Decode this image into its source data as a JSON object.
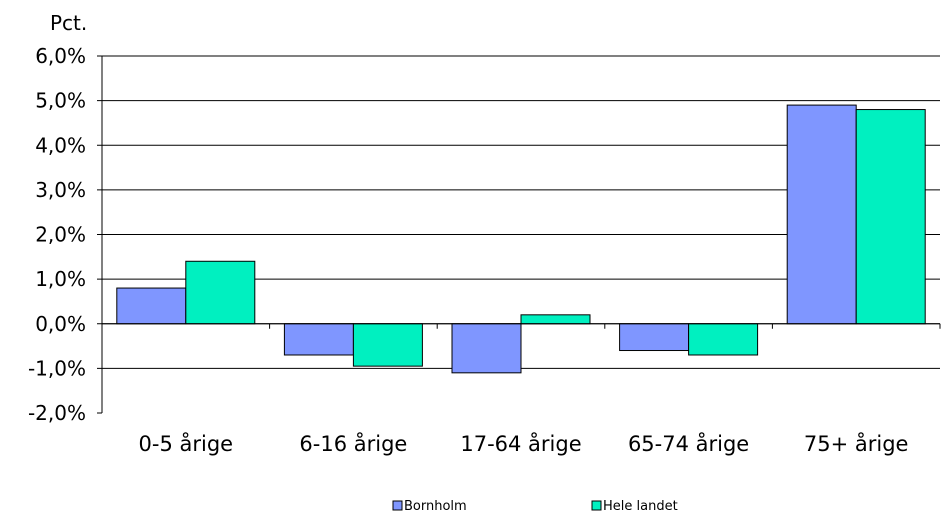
{
  "chart_data": {
    "type": "bar",
    "unit_label": "Pct.",
    "categories": [
      "0-5 årige",
      "6-16 årige",
      "17-64 årige",
      "65-74 årige",
      "75+ årige"
    ],
    "series": [
      {
        "name": "Bornholm",
        "color": "#7f96ff",
        "values": [
          0.8,
          -0.7,
          -1.1,
          -0.6,
          4.9
        ]
      },
      {
        "name": "Hele landet",
        "color": "#00f0c0",
        "values": [
          1.4,
          -0.95,
          0.2,
          -0.7,
          4.8
        ]
      }
    ],
    "ylim": [
      -2.0,
      6.0
    ],
    "yticks": [
      -2.0,
      -1.0,
      0.0,
      1.0,
      2.0,
      3.0,
      4.0,
      5.0,
      6.0
    ],
    "ytick_labels": [
      "-2,0%",
      "-1,0%",
      "0,0%",
      "1,0%",
      "2,0%",
      "3,0%",
      "4,0%",
      "5,0%",
      "6,0%"
    ],
    "grid": true,
    "legend_position": "bottom"
  }
}
